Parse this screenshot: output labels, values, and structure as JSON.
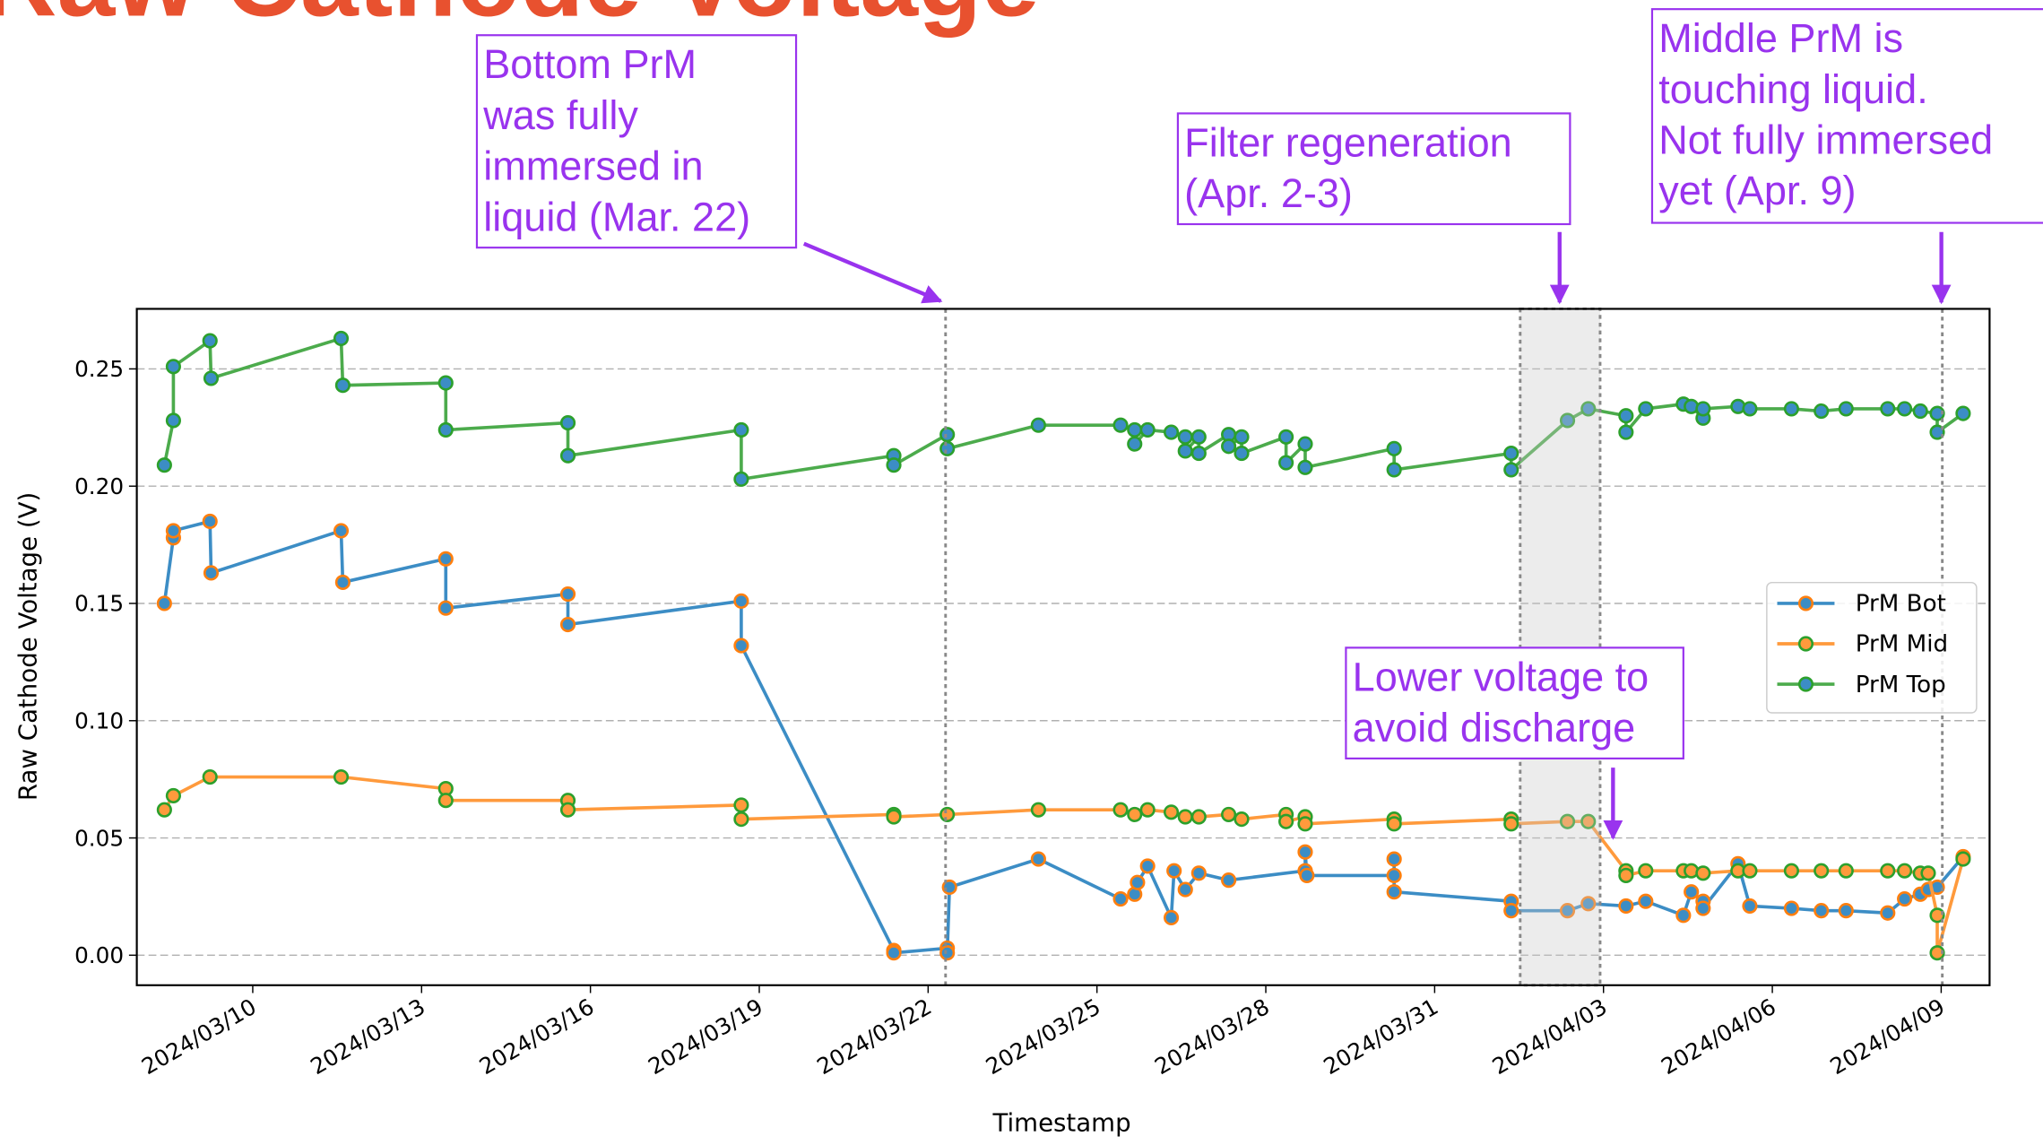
{
  "chart_data": {
    "type": "line",
    "title": "Raw Cathode Voltage",
    "xlabel": "Timestamp",
    "ylabel": "Raw Cathode Voltage (V)",
    "xlim": [
      -2.06,
      30.86
    ],
    "ylim": [
      -0.0128,
      0.2756
    ],
    "xticks": [
      {
        "value": 0,
        "label": "2024/03/10"
      },
      {
        "value": 3,
        "label": "2024/03/13"
      },
      {
        "value": 6,
        "label": "2024/03/16"
      },
      {
        "value": 9,
        "label": "2024/03/19"
      },
      {
        "value": 12,
        "label": "2024/03/22"
      },
      {
        "value": 15,
        "label": "2024/03/25"
      },
      {
        "value": 18,
        "label": "2024/03/28"
      },
      {
        "value": 21,
        "label": "2024/03/31"
      },
      {
        "value": 24,
        "label": "2024/04/03"
      },
      {
        "value": 27,
        "label": "2024/04/06"
      },
      {
        "value": 30,
        "label": "2024/04/09"
      }
    ],
    "yticks": [
      {
        "value": 0,
        "label": "0.00"
      },
      0.05,
      {
        "value": 0.1,
        "label": "0.10"
      },
      0.15,
      {
        "value": 0.2,
        "label": "0.20"
      },
      0.25
    ],
    "grid": true,
    "legend": "center right",
    "vlines": [
      12.31,
      30.02
    ],
    "span": [
      22.52,
      23.94
    ],
    "series": [
      {
        "name": "PrM Bot",
        "color": "#3c8dc5",
        "marker_color": "#3c8dc5",
        "marker_edge_color": "#ff7f0e",
        "x": [
          -1.57,
          -1.41,
          -1.41,
          -0.76,
          -0.74,
          1.57,
          1.6,
          3.43,
          3.43,
          5.6,
          5.6,
          8.68,
          8.68,
          11.39,
          11.39,
          12.34,
          12.34,
          12.38,
          13.96,
          15.42,
          15.67,
          15.72,
          15.9,
          16.32,
          16.37,
          16.57,
          16.81,
          17.34,
          18.7,
          18.7,
          18.73,
          20.28,
          20.28,
          20.28,
          22.36,
          22.36,
          23.36,
          23.73,
          24.4,
          24.75,
          25.42,
          25.56,
          25.77,
          25.77,
          26.39,
          26.6,
          27.34,
          27.87,
          28.31,
          29.05,
          29.35,
          29.63,
          29.77,
          29.93,
          30.39
        ],
        "values": [
          0.15,
          0.178,
          0.181,
          0.185,
          0.163,
          0.181,
          0.159,
          0.169,
          0.148,
          0.154,
          0.141,
          0.151,
          0.132,
          0.002,
          0.001,
          0.003,
          0.001,
          0.029,
          0.041,
          0.024,
          0.026,
          0.031,
          0.038,
          0.016,
          0.036,
          0.028,
          0.035,
          0.032,
          0.036,
          0.044,
          0.034,
          0.034,
          0.041,
          0.027,
          0.023,
          0.019,
          0.019,
          0.022,
          0.021,
          0.023,
          0.017,
          0.027,
          0.023,
          0.02,
          0.039,
          0.021,
          0.02,
          0.019,
          0.019,
          0.018,
          0.024,
          0.026,
          0.028,
          0.029,
          0.042
        ]
      },
      {
        "name": "PrM Mid",
        "color": "#ff9a3c",
        "marker_color": "#ff9a3c",
        "marker_edge_color": "#2ca02c",
        "x": [
          -1.57,
          -1.41,
          -0.76,
          1.57,
          3.43,
          3.43,
          5.6,
          5.6,
          8.68,
          8.68,
          11.39,
          11.39,
          12.34,
          13.96,
          15.42,
          15.67,
          15.9,
          16.32,
          16.57,
          16.81,
          17.34,
          17.57,
          18.36,
          18.36,
          18.7,
          18.7,
          20.28,
          20.28,
          22.36,
          22.36,
          23.36,
          23.73,
          24.4,
          24.4,
          24.75,
          25.42,
          25.56,
          25.77,
          26.39,
          26.6,
          27.34,
          27.87,
          28.31,
          29.05,
          29.35,
          29.63,
          29.77,
          29.93,
          29.93,
          30.39
        ],
        "values": [
          0.062,
          0.068,
          0.076,
          0.076,
          0.071,
          0.066,
          0.066,
          0.062,
          0.064,
          0.058,
          0.06,
          0.059,
          0.06,
          0.062,
          0.062,
          0.06,
          0.062,
          0.061,
          0.059,
          0.059,
          0.06,
          0.058,
          0.06,
          0.057,
          0.059,
          0.056,
          0.058,
          0.056,
          0.058,
          0.056,
          0.057,
          0.057,
          0.036,
          0.034,
          0.036,
          0.036,
          0.036,
          0.035,
          0.036,
          0.036,
          0.036,
          0.036,
          0.036,
          0.036,
          0.036,
          0.035,
          0.035,
          0.017,
          0.001,
          0.041
        ]
      },
      {
        "name": "PrM Top",
        "color": "#4cab4c",
        "marker_color": "#3c8dc5",
        "marker_edge_color": "#2ca02c",
        "x": [
          -1.57,
          -1.41,
          -1.41,
          -0.76,
          -0.74,
          1.57,
          1.6,
          3.43,
          3.43,
          5.6,
          5.6,
          8.68,
          8.68,
          11.39,
          11.39,
          12.34,
          12.34,
          13.96,
          15.42,
          15.67,
          15.67,
          15.9,
          16.32,
          16.57,
          16.57,
          16.81,
          16.81,
          17.34,
          17.34,
          17.57,
          17.57,
          18.36,
          18.36,
          18.7,
          18.7,
          20.28,
          20.28,
          22.36,
          22.36,
          23.36,
          23.73,
          24.4,
          24.4,
          24.75,
          25.42,
          25.56,
          25.77,
          25.77,
          26.39,
          26.6,
          27.34,
          27.87,
          28.31,
          29.05,
          29.35,
          29.63,
          29.93,
          29.93,
          30.39
        ],
        "values": [
          0.209,
          0.228,
          0.251,
          0.262,
          0.246,
          0.263,
          0.243,
          0.244,
          0.224,
          0.227,
          0.213,
          0.224,
          0.203,
          0.213,
          0.209,
          0.222,
          0.216,
          0.226,
          0.226,
          0.224,
          0.218,
          0.224,
          0.223,
          0.221,
          0.215,
          0.221,
          0.214,
          0.222,
          0.217,
          0.221,
          0.214,
          0.221,
          0.21,
          0.218,
          0.208,
          0.216,
          0.207,
          0.214,
          0.207,
          0.228,
          0.233,
          0.23,
          0.223,
          0.233,
          0.235,
          0.234,
          0.229,
          0.233,
          0.234,
          0.233,
          0.233,
          0.232,
          0.233,
          0.233,
          0.233,
          0.232,
          0.231,
          0.223,
          0.231
        ]
      }
    ],
    "annotations": [
      {
        "lines": [
          "Bottom PrM",
          "was fully",
          "immersed in",
          "liquid (Mar. 22)"
        ]
      },
      {
        "lines": [
          "Filter regeneration",
          "(Apr. 2-3)"
        ]
      },
      {
        "lines": [
          "Middle PrM is",
          "touching liquid.",
          "Not fully immersed",
          "yet (Apr. 9)"
        ]
      },
      {
        "lines": [
          "Lower voltage to",
          "avoid discharge"
        ]
      }
    ]
  }
}
